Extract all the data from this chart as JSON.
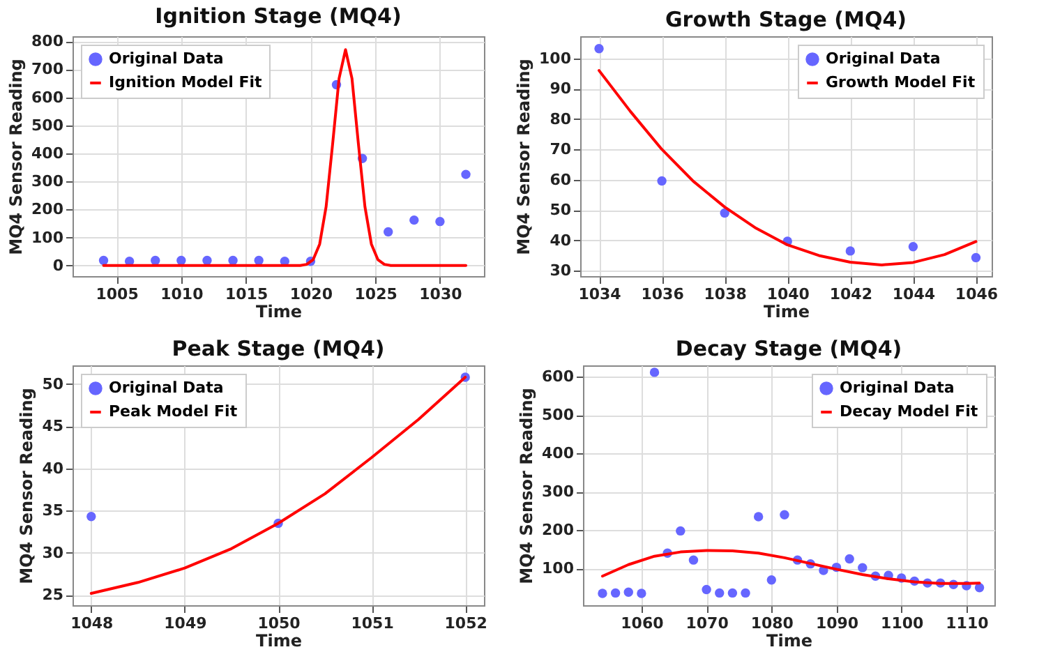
{
  "chart_data": [
    {
      "type": "scatter",
      "title": "Ignition Stage (MQ4)",
      "xlabel": "Time",
      "ylabel": "MQ4 Sensor Reading",
      "xlim": [
        1001.6,
        1033.4
      ],
      "ylim": [
        -38,
        818
      ],
      "xticks": [
        1005,
        1010,
        1015,
        1020,
        1025,
        1030
      ],
      "yticks": [
        0,
        100,
        200,
        300,
        400,
        500,
        600,
        700,
        800
      ],
      "grid": true,
      "legend": "top left",
      "series": [
        {
          "name": "Original Data",
          "color": "#6666ff",
          "marker": "circle",
          "x": [
            1004,
            1006,
            1008,
            1010,
            1012,
            1014,
            1016,
            1018,
            1020,
            1022,
            1024,
            1026,
            1028,
            1030,
            1032
          ],
          "values": [
            18,
            15,
            18,
            18,
            18,
            18,
            18,
            15,
            15,
            645,
            382,
            120,
            162,
            157,
            325
          ]
        },
        {
          "type": "line",
          "name": "Ignition Model Fit",
          "color": "#ff0000",
          "marker": "none",
          "x": [
            1004,
            1019.2,
            1019.7,
            1020.2,
            1020.7,
            1021.2,
            1021.7,
            1022.2,
            1022.7,
            1023.2,
            1023.7,
            1024.2,
            1024.7,
            1025.2,
            1025.7,
            1026.2,
            1032
          ],
          "values": [
            0,
            0,
            4,
            21,
            76,
            210,
            432,
            667,
            770,
            667,
            432,
            210,
            76,
            21,
            4,
            0,
            0
          ]
        }
      ]
    },
    {
      "type": "scatter",
      "title": "Growth Stage (MQ4)",
      "xlabel": "Time",
      "ylabel": "MQ4 Sensor Reading",
      "xlim": [
        1033.4,
        1046.5
      ],
      "ylim": [
        28.2,
        107.3
      ],
      "xticks": [
        1034,
        1036,
        1038,
        1040,
        1042,
        1044,
        1046
      ],
      "yticks": [
        30,
        40,
        50,
        60,
        70,
        80,
        90,
        100
      ],
      "grid": true,
      "legend": "top right",
      "series": [
        {
          "name": "Original Data",
          "color": "#6666ff",
          "marker": "circle",
          "x": [
            1034,
            1036,
            1038,
            1040,
            1042,
            1044,
            1046
          ],
          "values": [
            103.2,
            59.6,
            49,
            39.7,
            36.5,
            37.9,
            34.3
          ]
        },
        {
          "type": "line",
          "name": "Growth Model Fit",
          "color": "#ff0000",
          "marker": "none",
          "x": [
            1034,
            1035,
            1036,
            1037,
            1038,
            1039,
            1040,
            1041,
            1042,
            1043,
            1044,
            1045,
            1046
          ],
          "values": [
            96,
            82.5,
            70,
            59.5,
            51,
            44,
            38.5,
            35,
            32.8,
            31.9,
            32.7,
            35.3,
            39.6
          ]
        }
      ]
    },
    {
      "type": "scatter",
      "title": "Peak Stage (MQ4)",
      "xlabel": "Time",
      "ylabel": "MQ4 Sensor Reading",
      "xlim": [
        1047.8,
        1052.2
      ],
      "ylim": [
        23.8,
        52.2
      ],
      "xticks": [
        1048,
        1049,
        1050,
        1051,
        1052
      ],
      "yticks": [
        25,
        30,
        35,
        40,
        45,
        50
      ],
      "grid": true,
      "legend": "top left",
      "series": [
        {
          "name": "Original Data",
          "color": "#6666ff",
          "marker": "circle",
          "x": [
            1048,
            1050,
            1052
          ],
          "values": [
            34.3,
            33.5,
            50.8
          ]
        },
        {
          "type": "line",
          "name": "Peak Model Fit",
          "color": "#ff0000",
          "marker": "none",
          "x": [
            1048,
            1048.5,
            1049,
            1049.5,
            1050,
            1050.5,
            1051,
            1051.5,
            1052
          ],
          "values": [
            25.2,
            26.5,
            28.2,
            30.5,
            33.5,
            37,
            41.3,
            45.8,
            50.8
          ]
        }
      ]
    },
    {
      "type": "scatter",
      "title": "Decay Stage (MQ4)",
      "xlabel": "Time",
      "ylabel": "MQ4 Sensor Reading",
      "xlim": [
        1051,
        1114.3
      ],
      "ylim": [
        4,
        630
      ],
      "xticks": [
        1060,
        1070,
        1080,
        1090,
        1100,
        1110
      ],
      "yticks": [
        100,
        200,
        300,
        400,
        500,
        600
      ],
      "grid": true,
      "legend": "top right",
      "series": [
        {
          "name": "Original Data",
          "color": "#6666ff",
          "marker": "circle",
          "x": [
            1054,
            1056,
            1058,
            1060,
            1062,
            1064,
            1066,
            1068,
            1070,
            1072,
            1074,
            1076,
            1078,
            1080,
            1082,
            1084,
            1086,
            1088,
            1090,
            1092,
            1094,
            1096,
            1098,
            1100,
            1102,
            1104,
            1106,
            1108,
            1110,
            1112
          ],
          "values": [
            35,
            36,
            38,
            35,
            612,
            140,
            198,
            122,
            45,
            36,
            36,
            36,
            235,
            70,
            240,
            122,
            112,
            95,
            103,
            125,
            102,
            80,
            82,
            75,
            67,
            62,
            62,
            58,
            55,
            50
          ]
        },
        {
          "type": "line",
          "name": "Decay Model Fit",
          "color": "#ff0000",
          "marker": "none",
          "x": [
            1054,
            1058,
            1062,
            1066,
            1070,
            1074,
            1078,
            1082,
            1086,
            1090,
            1094,
            1098,
            1102,
            1106,
            1110,
            1112
          ],
          "values": [
            80,
            110,
            132,
            143,
            147,
            146,
            140,
            128,
            113,
            98,
            84,
            73,
            65,
            61,
            61,
            62
          ]
        }
      ]
    }
  ]
}
